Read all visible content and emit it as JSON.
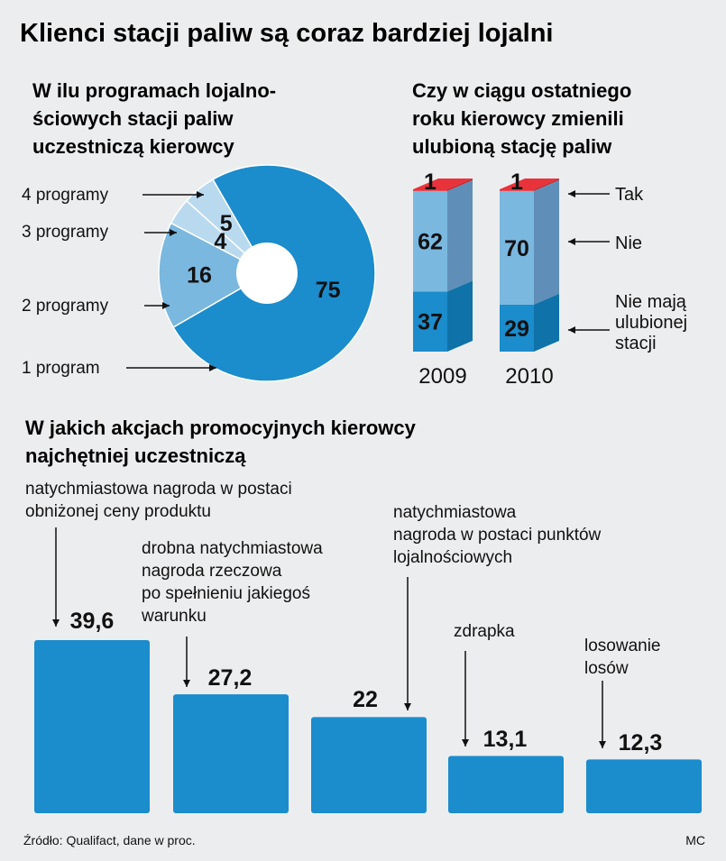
{
  "title": "Klienci stacji paliw są coraz bardziej lojalni",
  "source": "Źródło: Qualifact, dane w proc.",
  "author": "MC",
  "colors": {
    "background": "#ecedef",
    "main_blue": "#1b8ccc",
    "mid_blue": "#7ab8df",
    "light_blue": "#b9d9ef",
    "dark_blue": "#0f72a8",
    "top_red": "#e8333b"
  },
  "chart_data": [
    {
      "type": "pie",
      "variant": "donut",
      "title_lines": [
        "W ilu programach lojalno-",
        "ściowych stacji paliw",
        "uczestniczą kierowcy"
      ],
      "categories": [
        "1 program",
        "2 programy",
        "3 programy",
        "4 programy"
      ],
      "values": [
        75,
        16,
        4,
        5
      ]
    },
    {
      "type": "bar",
      "variant": "stacked-100",
      "title_lines": [
        "Czy w ciągu ostatniego",
        "roku kierowcy zmienili",
        "ulubioną stację paliw"
      ],
      "categories": [
        "2009",
        "2010"
      ],
      "series": [
        {
          "name": "Nie mają ulubionej stacji",
          "label_lines": [
            "Nie mają",
            "ulubionej",
            "stacji"
          ],
          "values": [
            37,
            29
          ]
        },
        {
          "name": "Nie",
          "label_lines": [
            "Nie"
          ],
          "values": [
            62,
            70
          ]
        },
        {
          "name": "Tak",
          "label_lines": [
            "Tak"
          ],
          "values": [
            1,
            1
          ]
        }
      ],
      "ylim": [
        0,
        100
      ]
    },
    {
      "type": "bar",
      "title_lines": [
        "W jakich akcjach promocyjnych kierowcy",
        "najchętniej uczestniczą"
      ],
      "categories": [
        "natychmiastowa nagroda w postaci obniżonej ceny produktu",
        "drobna natychmiastowa nagroda rzeczowa po spełnieniu jakiegoś warunku",
        "natychmiastowa nagroda w postaci punktów lojalnościowych",
        "zdrapka",
        "losowanie losów"
      ],
      "category_label_lines": [
        [
          "natychmiastowa nagroda w postaci",
          "obniżonej ceny produktu"
        ],
        [
          "drobna natychmiastowa",
          "nagroda rzeczowa",
          "po spełnieniu jakiegoś",
          "warunku"
        ],
        [
          "natychmiastowa",
          "nagroda w postaci punktów",
          "lojalnościowych"
        ],
        [
          "zdrapka"
        ],
        [
          "losowanie",
          "losów"
        ]
      ],
      "values": [
        39.6,
        27.2,
        22,
        13.1,
        12.3
      ],
      "value_labels": [
        "39,6",
        "27,2",
        "22",
        "13,1",
        "12,3"
      ],
      "ylim": [
        0,
        40
      ]
    }
  ]
}
